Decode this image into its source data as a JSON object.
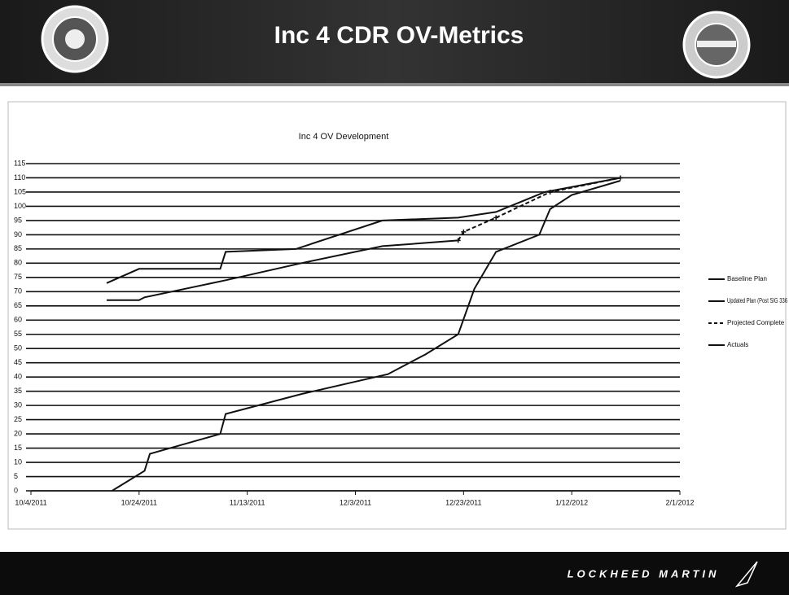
{
  "header": {
    "title": "Inc 4 CDR OV-Metrics"
  },
  "footer": {
    "brand": "LOCKHEED MARTIN"
  },
  "chart_data": {
    "type": "line",
    "title": "Inc 4 OV Development",
    "xlim": [
      "10/4/2011",
      "2/1/2012"
    ],
    "xticks": [
      "10/4/2011",
      "10/24/2011",
      "11/13/2011",
      "12/3/2011",
      "12/23/2011",
      "1/12/2012",
      "2/1/2012"
    ],
    "ylim": [
      0,
      115
    ],
    "yticks": [
      0,
      5,
      10,
      15,
      20,
      25,
      30,
      35,
      40,
      45,
      50,
      55,
      60,
      65,
      70,
      75,
      80,
      85,
      90,
      95,
      100,
      105,
      110,
      115
    ],
    "grid": true,
    "legend": "right",
    "series": [
      {
        "name": "Baseline Plan",
        "color": "#111111",
        "x": [
          "10/18/2011",
          "10/24/2011",
          "11/8/2011",
          "11/9/2011",
          "11/22/2011",
          "12/8/2011",
          "12/22/2011",
          "12/29/2011",
          "1/7/2012",
          "1/21/2012"
        ],
        "values": [
          73,
          78,
          78,
          84,
          85,
          95,
          96,
          98,
          105,
          110
        ]
      },
      {
        "name": "Updated Plan (Post SIG 336",
        "color": "#111111",
        "x": [
          "10/18/2011",
          "10/24/2011",
          "10/25/2011",
          "11/9/2011",
          "11/23/2011",
          "12/8/2011",
          "12/22/2011"
        ],
        "values": [
          67,
          67,
          68,
          74,
          80,
          86,
          88
        ]
      },
      {
        "name": "Projected Complete",
        "color": "#111111",
        "dashed": true,
        "x": [
          "12/22/2011",
          "12/23/2011",
          "12/29/2011",
          "1/8/2012",
          "1/21/2012"
        ],
        "values": [
          88,
          91,
          96,
          105,
          110
        ]
      },
      {
        "name": "Actuals",
        "color": "#111111",
        "x": [
          "10/19/2011",
          "10/25/2011",
          "10/26/2011",
          "11/8/2011",
          "11/9/2011",
          "11/23/2011",
          "12/9/2011",
          "12/16/2011",
          "12/22/2011",
          "12/25/2011",
          "12/29/2011",
          "1/6/2012",
          "1/8/2012",
          "1/12/2012",
          "1/21/2012"
        ],
        "values": [
          0,
          7,
          13,
          20,
          27,
          34,
          41,
          48,
          55,
          71,
          84,
          90,
          99,
          104,
          109
        ]
      }
    ]
  }
}
